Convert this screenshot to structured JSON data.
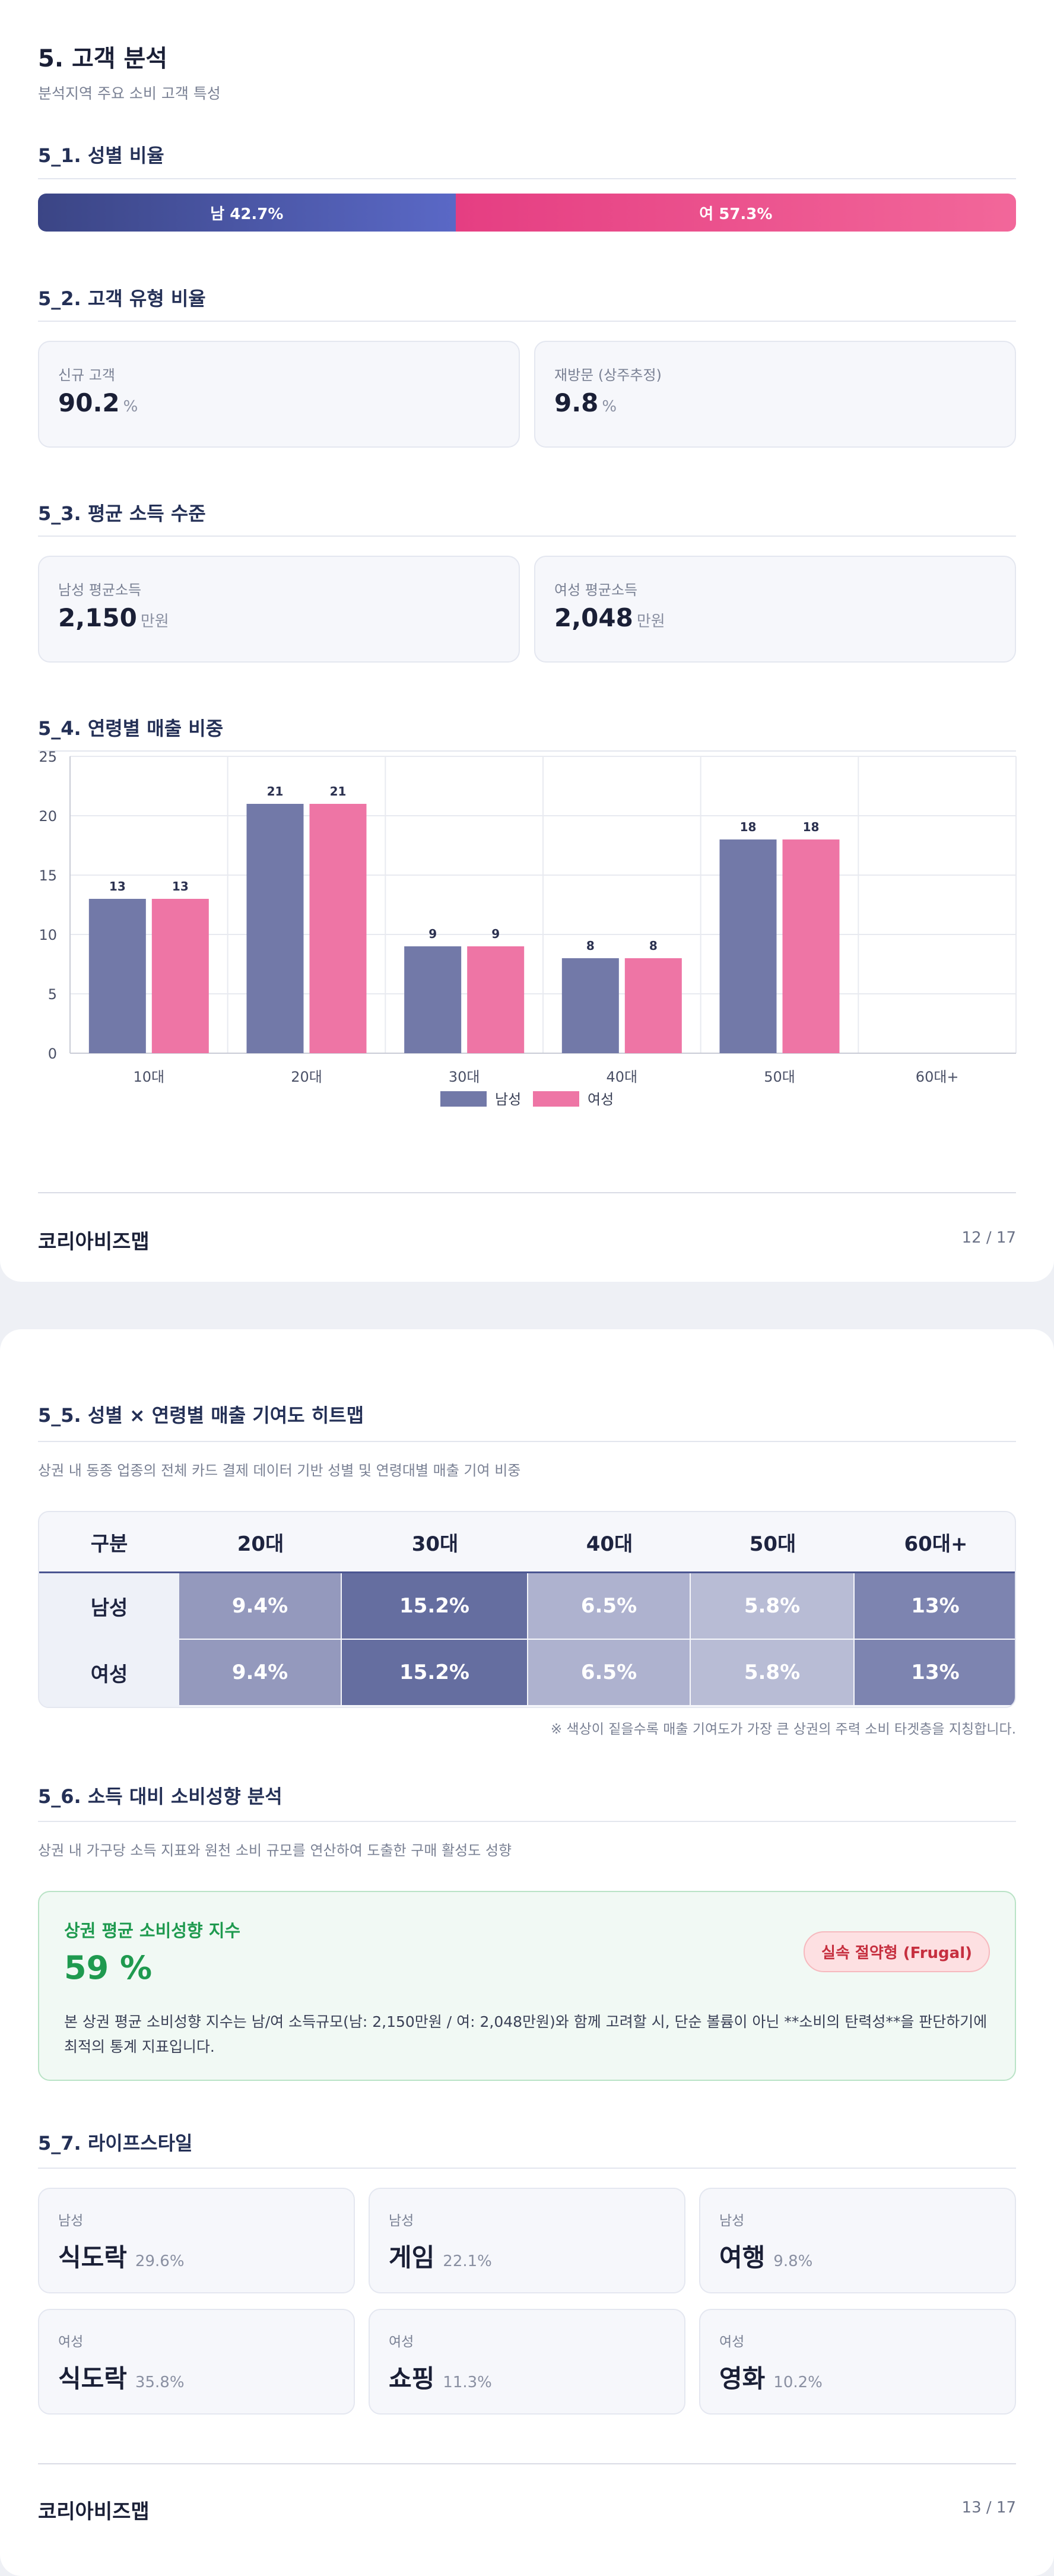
{
  "page1": {
    "title": "5. 고객 분석",
    "subtitle": "분석지역 주요 소비 고객 특성",
    "gender_ratio": {
      "heading": "5_1. 성별 비율",
      "male_label": "남 42.7%",
      "female_label": "여 57.3%",
      "male_pct": 42.7,
      "female_pct": 57.3
    },
    "customer_type": {
      "heading": "5_2. 고객 유형 비율",
      "new_label": "신규 고객",
      "new_value": "90.2",
      "new_unit": "%",
      "return_label": "재방문 (상주추정)",
      "return_value": "9.8",
      "return_unit": "%"
    },
    "income": {
      "heading": "5_3. 평균 소득 수준",
      "male_label": "남성 평균소득",
      "male_value": "2,150",
      "male_unit": "만원",
      "female_label": "여성 평균소득",
      "female_value": "2,048",
      "female_unit": "만원"
    },
    "age_sales": {
      "heading": "5_4. 연령별 매출 비중"
    },
    "footer": {
      "brand": "코리아비즈맵",
      "page": "12 / 17"
    }
  },
  "chart_data": {
    "type": "bar",
    "categories": [
      "10대",
      "20대",
      "30대",
      "40대",
      "50대",
      "60대+"
    ],
    "series": [
      {
        "name": "남성",
        "values": [
          13,
          21,
          9,
          8,
          18,
          0
        ]
      },
      {
        "name": "여성",
        "values": [
          13,
          21,
          9,
          8,
          18,
          0
        ]
      }
    ],
    "data_labels": [
      [
        "13",
        "21",
        "9",
        "8",
        "18",
        ""
      ],
      [
        "13",
        "21",
        "9",
        "8",
        "18",
        ""
      ]
    ],
    "y_ticks": [
      "0",
      "5",
      "10",
      "15",
      "20",
      "25"
    ],
    "ylim": [
      0,
      25
    ],
    "grid": true,
    "legend_position": "bottom",
    "colors": [
      "#7279a8",
      "#ee75a5"
    ]
  },
  "page2": {
    "heatmap": {
      "heading": "5_5. 성별 × 연령별 매출 기여도 히트맵",
      "description": "상권 내 동종 업종의 전체 카드 결제 데이터 기반 성별 및 연령대별 매출 기여 비중",
      "corner": "구분",
      "columns": [
        "20대",
        "30대",
        "40대",
        "50대",
        "60대+"
      ],
      "rows": [
        {
          "label": "남성",
          "values": [
            "9.4%",
            "15.2%",
            "6.5%",
            "5.8%",
            "13%"
          ]
        },
        {
          "label": "여성",
          "values": [
            "9.4%",
            "15.2%",
            "6.5%",
            "5.8%",
            "13%"
          ]
        }
      ],
      "cell_colors": [
        "#9499bd",
        "#656ea0",
        "#aeb2cf",
        "#b8bcd5",
        "#7d84b0"
      ],
      "note": "※ 색상이 짙을수록 매출 기여도가 가장 큰 상권의 주력 소비 타겟층을 지칭합니다."
    },
    "propensity": {
      "heading": "5_6. 소득 대비 소비성향 분석",
      "description": "상권 내 가구당 소득 지표와 원천 소비 규모를 연산하여 도출한 구매 활성도 성향",
      "card_title": "상권 평균 소비성향 지수",
      "value": "59 %",
      "badge": "실속 절약형 (Frugal)",
      "body": "본 상권 평균 소비성향 지수는 남/여 소득규모(남: 2,150만원 / 여: 2,048만원)와 함께 고려할 시, 단순 볼륨이 아닌 **소비의 탄력성**을 판단하기에 최적의 통계 지표입니다."
    },
    "lifestyle": {
      "heading": "5_7. 라이프스타일",
      "items": [
        {
          "gender": "남성",
          "name": "식도락",
          "pct": "29.6%"
        },
        {
          "gender": "남성",
          "name": "게임",
          "pct": "22.1%"
        },
        {
          "gender": "남성",
          "name": "여행",
          "pct": "9.8%"
        },
        {
          "gender": "여성",
          "name": "식도락",
          "pct": "35.8%"
        },
        {
          "gender": "여성",
          "name": "쇼핑",
          "pct": "11.3%"
        },
        {
          "gender": "여성",
          "name": "영화",
          "pct": "10.2%"
        }
      ]
    },
    "footer": {
      "brand": "코리아비즈맵",
      "page": "13 / 17"
    }
  }
}
